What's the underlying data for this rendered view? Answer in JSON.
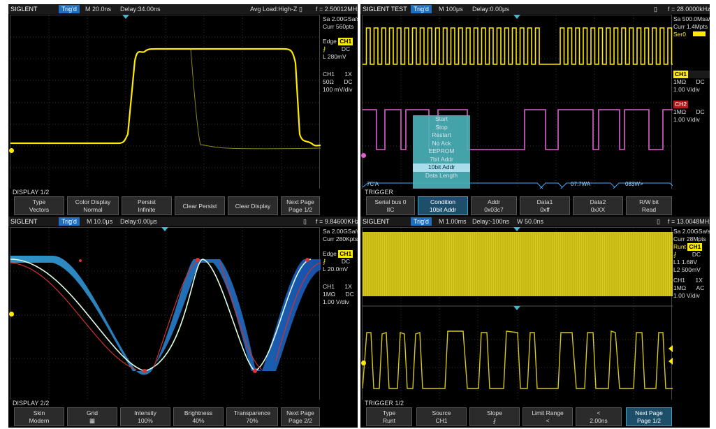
{
  "panel1": {
    "brand": "SIGLENT",
    "trig": "Trig'd",
    "timebase": "M 20.0ns",
    "delay": "Delay:34.00ns",
    "load": "Avg Load:High-Z",
    "freq": "f = 2.50012MHz",
    "sa": "Sa 2.00GSa/s",
    "curr": "Curr 560pts",
    "edge": "Edge",
    "ch_badge": "CH1",
    "dc": "DC",
    "level": "L   280mV",
    "ch1_label": "CH1",
    "probe": "1X",
    "impedance": "50Ω",
    "coupling": "DC",
    "vdiv": "100 mV/div",
    "menu_title": "DISPLAY 1/2",
    "buttons": [
      {
        "l1": "Type",
        "l2": "Vectors"
      },
      {
        "l1": "Color Display",
        "l2": "Normal"
      },
      {
        "l1": "Persist",
        "l2": "Infinite"
      },
      {
        "l1": "Clear Persist",
        "l2": ""
      },
      {
        "l1": "Clear Display",
        "l2": ""
      },
      {
        "l1": "Next Page",
        "l2": "Page 1/2"
      }
    ]
  },
  "panel2": {
    "brand": "SIGLENT TEST",
    "trig": "Trig'd",
    "timebase": "M 100μs",
    "delay": "Delay:0.00μs",
    "freq": "f = 28.0000kHz",
    "sa": "Sa 500.0Msa/s",
    "curr": "Curr 1.4Mpts",
    "ser": "Ser0",
    "ch1_label": "CH1",
    "ch1_imp": "1MΩ",
    "ch1_coupling": "DC",
    "ch1_vdiv": "1.00 V/div",
    "ch2_label": "CH2",
    "ch2_imp": "1MΩ",
    "ch2_coupling": "DC",
    "ch2_vdiv": "1.00 V/div",
    "popup_items": [
      "Start",
      "Stop",
      "Restart",
      "No Ack",
      "EEPROM",
      "7bit Addr",
      "10bit Addr",
      "Data Length"
    ],
    "bus_text_1": "7C'A",
    "bus_text_2": "07:7WA",
    "bus_text_3": "083W>",
    "menu_title": "TRIGGER",
    "buttons": [
      {
        "l1": "Serial bus 0",
        "l2": "IIC"
      },
      {
        "l1": "Condition",
        "l2": "10bit Addr"
      },
      {
        "l1": "Addr",
        "l2": "0x03c7"
      },
      {
        "l1": "Data1",
        "l2": "0xff"
      },
      {
        "l1": "Data2",
        "l2": "0xXX"
      },
      {
        "l1": "R/W bit",
        "l2": "Read"
      }
    ]
  },
  "panel3": {
    "brand": "SIGLENT",
    "trig": "Trig'd",
    "timebase": "M 10.0μs",
    "delay": "Delay:0.00μs",
    "freq": "f = 9.84600KHz",
    "sa": "Sa 2.00GSa/s",
    "curr": "Curr 280Kpts",
    "edge": "Edge",
    "ch_badge": "CH1",
    "dc": "DC",
    "level": "L   20.0mV",
    "ch1_label": "CH1",
    "probe": "1X",
    "impedance": "1MΩ",
    "coupling": "DC",
    "vdiv": "1.00 V/div",
    "menu_title": "DISPLAY 2/2",
    "buttons": [
      {
        "l1": "Skin",
        "l2": "Modern"
      },
      {
        "l1": "Grid",
        "l2": "▦"
      },
      {
        "l1": "Intensity",
        "l2": "100%"
      },
      {
        "l1": "Brightness",
        "l2": "40%"
      },
      {
        "l1": "Transparence",
        "l2": "70%"
      },
      {
        "l1": "Next Page",
        "l2": "Page 2/2"
      }
    ]
  },
  "panel4": {
    "brand": "SIGLENT",
    "trig": "Trig'd",
    "timebase": "M 1.00ms",
    "delay": "Delay:-100ns",
    "window": "W 50.0ns",
    "freq": "f = 13.0048MHz",
    "sa": "Sa 2.00GSa/s",
    "curr": "Curr 28Mpts",
    "runt": "Runt",
    "ch_badge": "CH1",
    "dc": "DC",
    "l1": "L1 1.68V",
    "l2": "L2 500mV",
    "ch1_label": "CH1",
    "probe": "1X",
    "impedance": "1MΩ",
    "coupling": "AC",
    "vdiv": "1.00 V/div",
    "menu_title": "TRIGGER 1/2",
    "buttons": [
      {
        "l1": "Type",
        "l2": "Runt"
      },
      {
        "l1": "Source",
        "l2": "CH1"
      },
      {
        "l1": "Slope",
        "l2": "⨏"
      },
      {
        "l1": "Limit Range",
        "l2": "<"
      },
      {
        "l1": "<",
        "l2": "2.00ns"
      },
      {
        "l1": "Next Page",
        "l2": "Page 1/2"
      }
    ]
  },
  "colors": {
    "ch1": "#ffeb00",
    "ch2": "#e060d0",
    "accent": "#1f6fbf",
    "menu_active": "#38a3c9"
  }
}
